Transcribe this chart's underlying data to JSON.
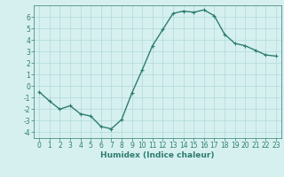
{
  "x": [
    0,
    1,
    2,
    3,
    4,
    5,
    6,
    7,
    8,
    9,
    10,
    11,
    12,
    13,
    14,
    15,
    16,
    17,
    18,
    19,
    20,
    21,
    22,
    23
  ],
  "y": [
    -0.5,
    -1.3,
    -2.0,
    -1.7,
    -2.4,
    -2.6,
    -3.5,
    -3.7,
    -2.9,
    -0.6,
    1.4,
    3.5,
    4.9,
    6.3,
    6.5,
    6.4,
    6.6,
    6.1,
    4.5,
    3.7,
    3.5,
    3.1,
    2.7,
    2.6
  ],
  "line_color": "#2e7d6e",
  "marker": "+",
  "marker_size": 3,
  "bg_color": "#d6f0f0",
  "grid_color": "#b0d8d8",
  "xlabel": "Humidex (Indice chaleur)",
  "xlim": [
    -0.5,
    23.5
  ],
  "ylim": [
    -4.5,
    7.0
  ],
  "yticks": [
    -4,
    -3,
    -2,
    -1,
    0,
    1,
    2,
    3,
    4,
    5,
    6
  ],
  "xticks": [
    0,
    1,
    2,
    3,
    4,
    5,
    6,
    7,
    8,
    9,
    10,
    11,
    12,
    13,
    14,
    15,
    16,
    17,
    18,
    19,
    20,
    21,
    22,
    23
  ],
  "tick_fontsize": 5.5,
  "xlabel_fontsize": 6.5,
  "line_width": 1.0
}
